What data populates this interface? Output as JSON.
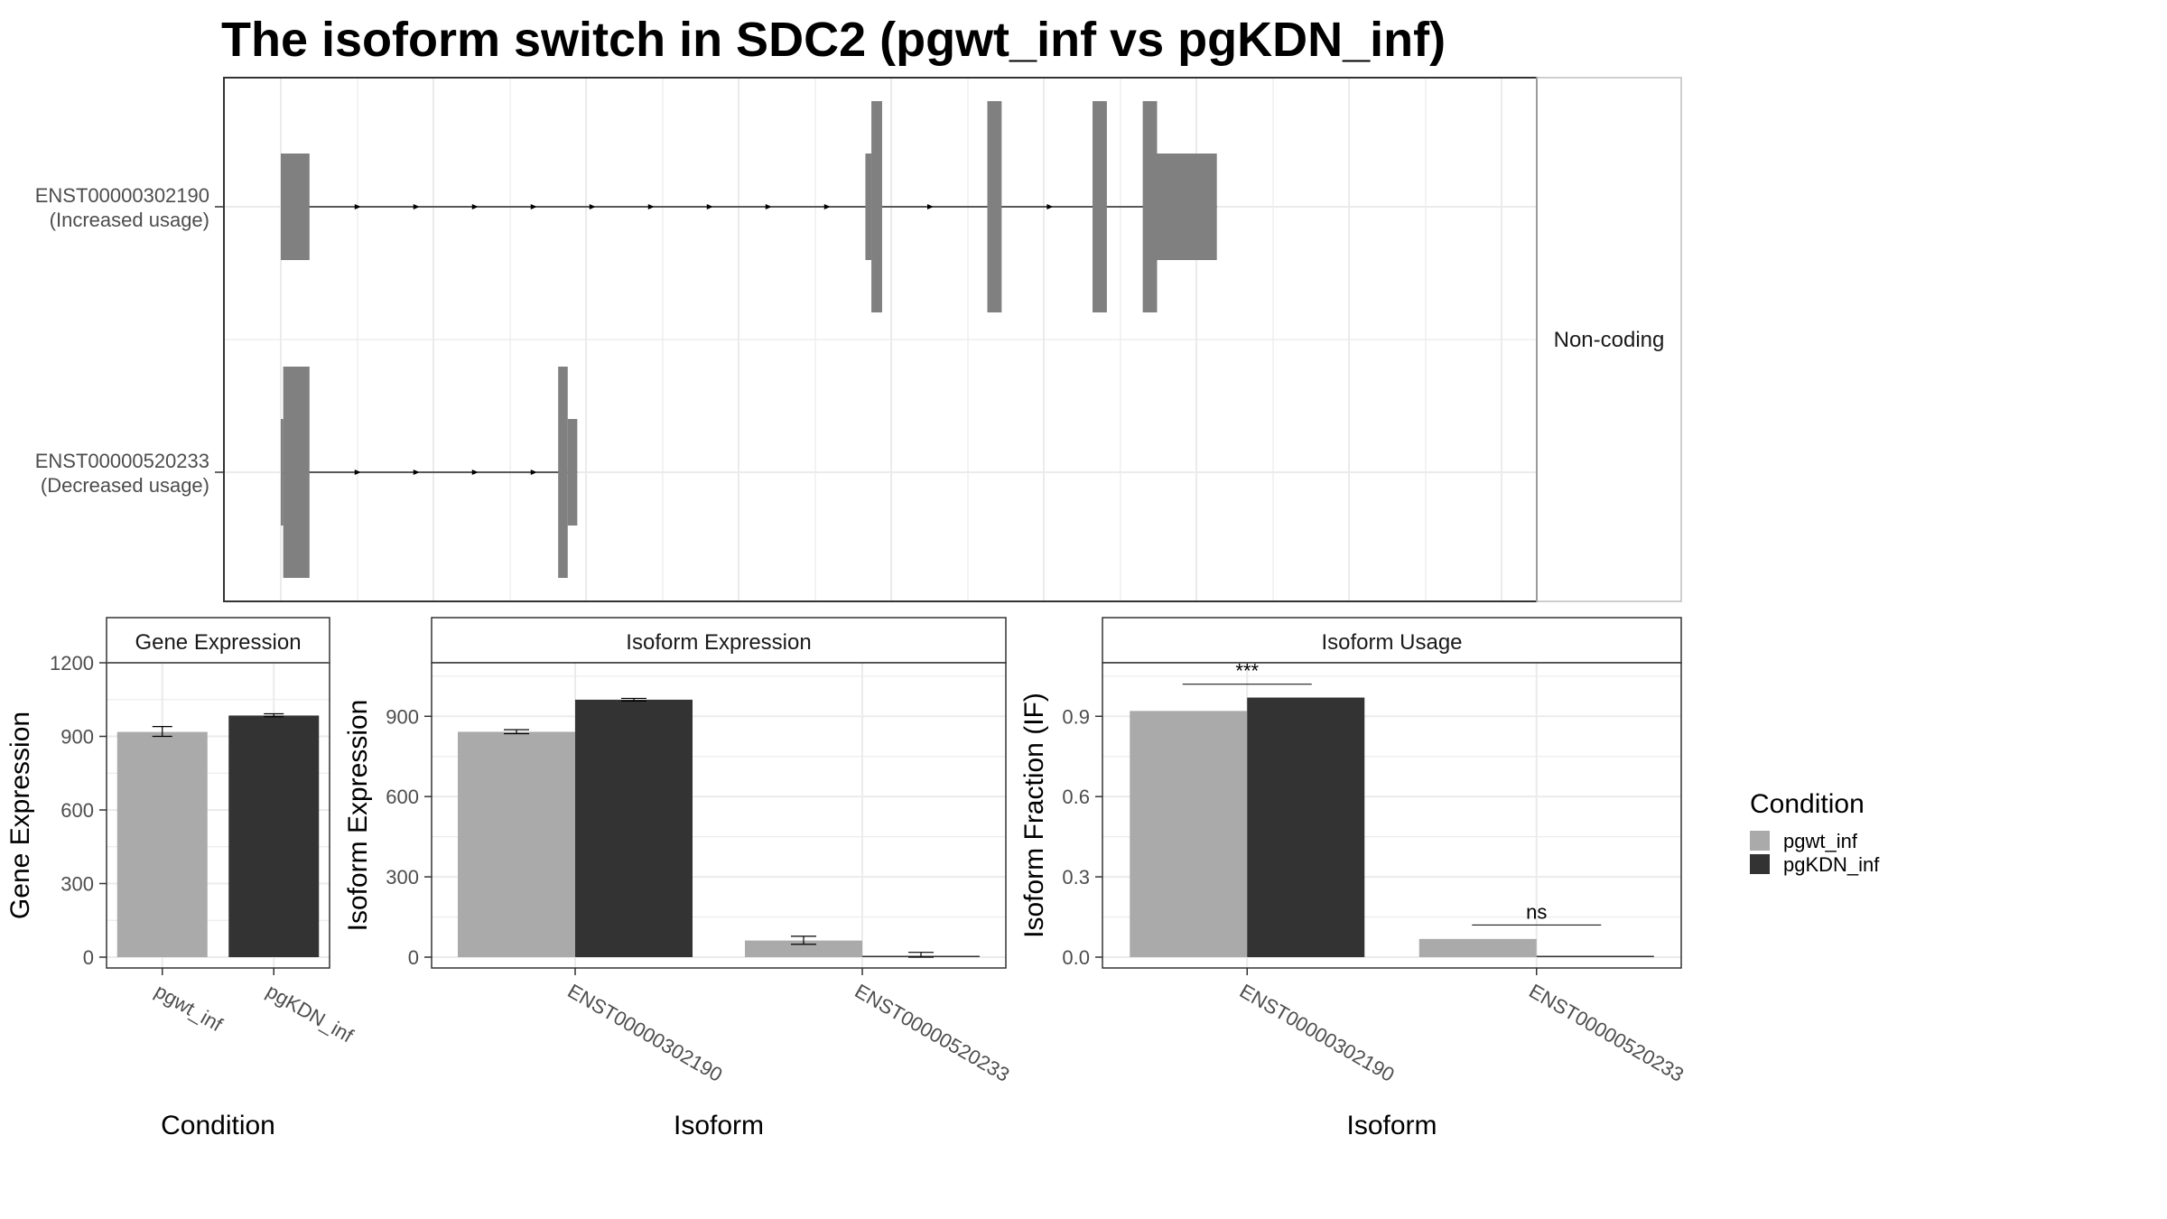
{
  "title": "The isoform switch in SDC2 (pgwt_inf vs pgKDN_inf)",
  "colors": {
    "pgwt_inf": "#aaaaaa",
    "pgKDN_inf": "#333333",
    "exon": "#808080",
    "panel_border": "#333333",
    "grid": "#ebebeb"
  },
  "legend": {
    "title": "Condition",
    "entries": [
      "pgwt_inf",
      "pgKDN_inf"
    ]
  },
  "chart_data": [
    {
      "type": "gene-structure",
      "strip_label": "Non-coding",
      "transcripts": [
        {
          "id": "ENST00000302190",
          "label_line1": "ENST00000302190",
          "label_line2": "(Increased usage)",
          "exons": [
            {
              "start": 0.0,
              "end": 0.024,
              "h": "mid"
            },
            {
              "start": 0.489,
              "end": 0.494,
              "h": "mid"
            },
            {
              "start": 0.494,
              "end": 0.503,
              "h": "full"
            },
            {
              "start": 0.591,
              "end": 0.603,
              "h": "full"
            },
            {
              "start": 0.679,
              "end": 0.691,
              "h": "full"
            },
            {
              "start": 0.721,
              "end": 0.733,
              "h": "full"
            },
            {
              "start": 0.733,
              "end": 0.783,
              "h": "mid"
            }
          ]
        },
        {
          "id": "ENST00000520233",
          "label_line1": "ENST00000520233",
          "label_line2": "(Decreased usage)",
          "exons": [
            {
              "start": 0.0,
              "end": 0.002,
              "h": "mid"
            },
            {
              "start": 0.002,
              "end": 0.024,
              "h": "full"
            },
            {
              "start": 0.232,
              "end": 0.24,
              "h": "full"
            },
            {
              "start": 0.24,
              "end": 0.248,
              "h": "mid"
            }
          ]
        }
      ]
    },
    {
      "type": "bar",
      "strip": "Gene Expression",
      "xlabel": "Condition",
      "ylabel": "Gene Expression",
      "ylim": [
        0,
        1200
      ],
      "yticks": [
        0,
        300,
        600,
        900,
        1200
      ],
      "categories": [
        "pgwt_inf",
        "pgKDN_inf"
      ],
      "values": [
        918,
        985
      ],
      "errors": [
        [
          900,
          940
        ],
        [
          980,
          992
        ]
      ]
    },
    {
      "type": "bar",
      "strip": "Isoform Expression",
      "xlabel": "Isoform",
      "ylabel": "Isoform Expression",
      "ylim": [
        0,
        1100
      ],
      "yticks": [
        0,
        300,
        600,
        900
      ],
      "categories": [
        "ENST00000302190",
        "ENST00000520233"
      ],
      "series": [
        {
          "name": "pgwt_inf",
          "values": [
            842,
            62
          ],
          "errors": [
            [
              835,
              850
            ],
            [
              48,
              78
            ]
          ]
        },
        {
          "name": "pgKDN_inf",
          "values": [
            962,
            5
          ],
          "errors": [
            [
              957,
              967
            ],
            [
              0,
              18
            ]
          ]
        }
      ]
    },
    {
      "type": "bar",
      "strip": "Isoform Usage",
      "xlabel": "Isoform",
      "ylabel": "Isoform Fraction (IF)",
      "ylim": [
        0,
        1.1
      ],
      "yticks": [
        "0.0",
        "0.3",
        "0.6",
        "0.9"
      ],
      "categories": [
        "ENST00000302190",
        "ENST00000520233"
      ],
      "series": [
        {
          "name": "pgwt_inf",
          "values": [
            0.92,
            0.068
          ]
        },
        {
          "name": "pgKDN_inf",
          "values": [
            0.97,
            0.004
          ]
        }
      ],
      "significance": [
        {
          "label": "***",
          "at": 1.02
        },
        {
          "label": "ns",
          "at": 0.12
        }
      ]
    }
  ]
}
